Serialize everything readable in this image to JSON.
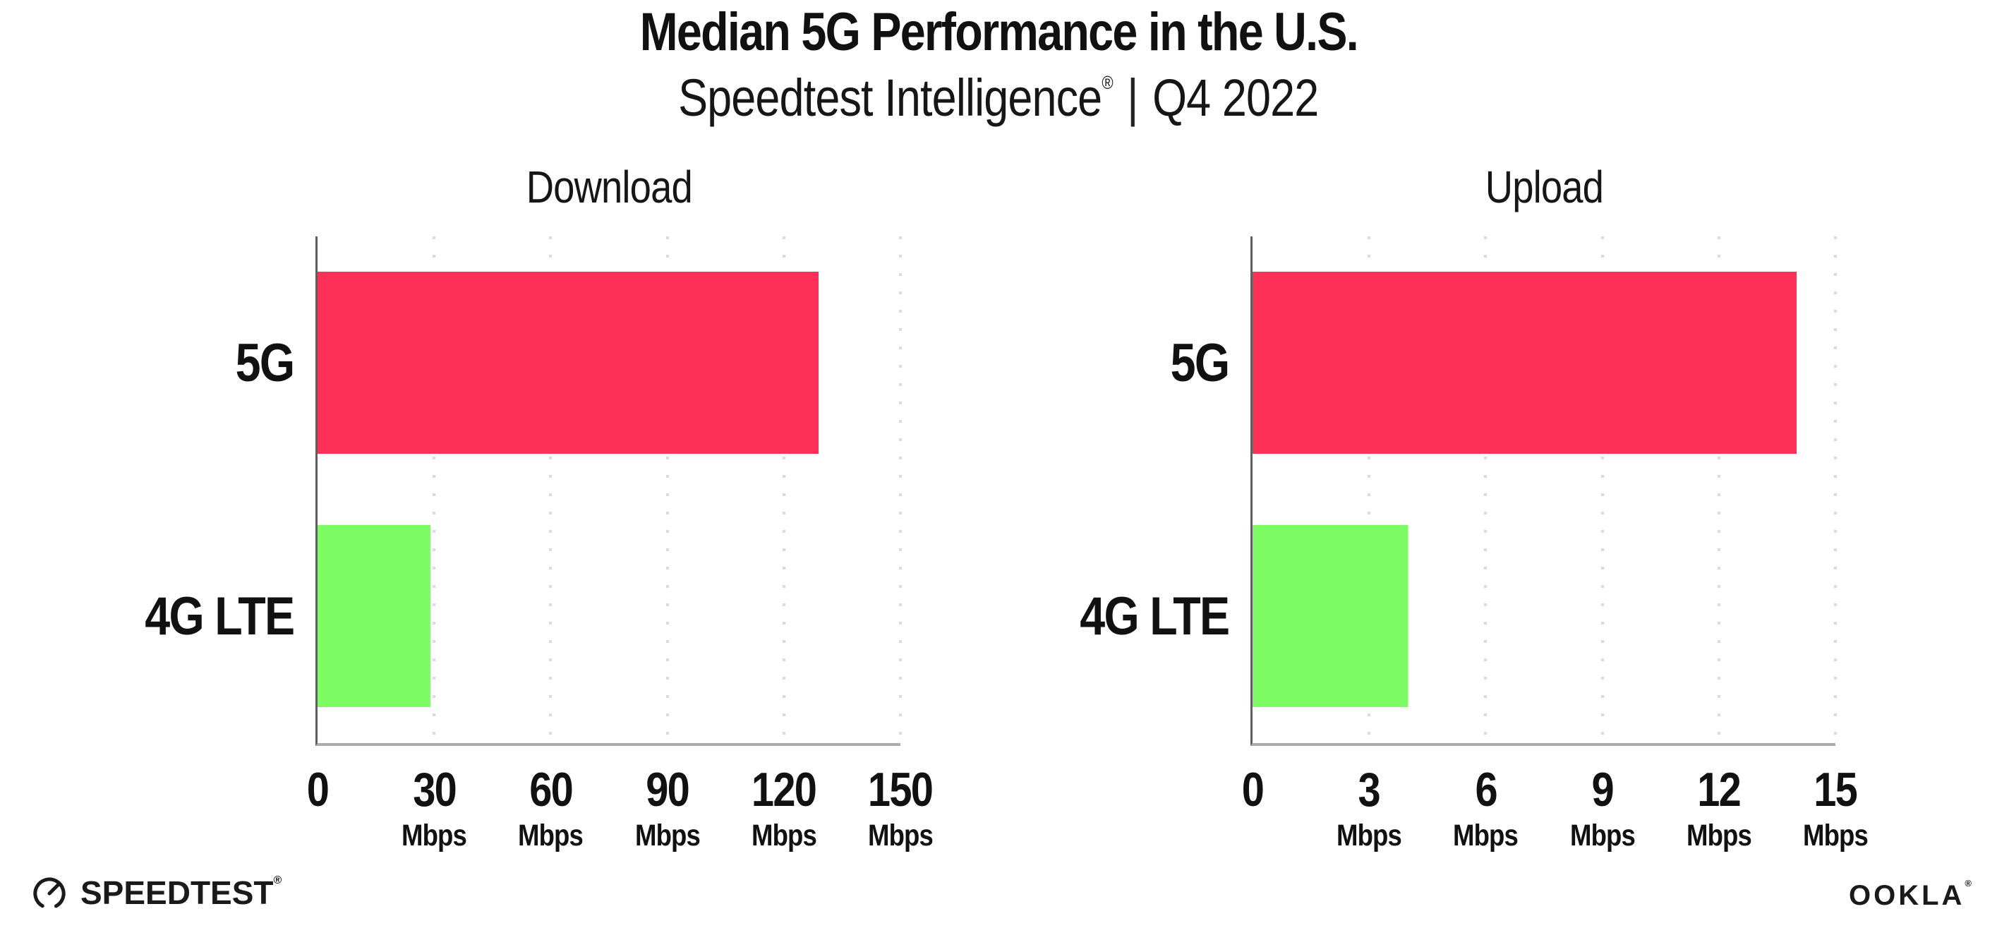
{
  "header": {
    "title": "Median 5G Performance in the U.S.",
    "subtitle_product": "Speedtest Intelligence",
    "subtitle_reg": "®",
    "subtitle_separator": "|",
    "subtitle_period": "Q4 2022"
  },
  "chart_data": [
    {
      "type": "bar",
      "orientation": "horizontal",
      "title": "Download",
      "categories": [
        "5G",
        "4G LTE"
      ],
      "values": [
        129,
        29
      ],
      "unit": "Mbps",
      "xlim": [
        0,
        150
      ],
      "xticks": [
        0,
        30,
        60,
        90,
        120,
        150
      ],
      "tick_unit_label": "Mbps",
      "bar_colors": [
        "#ff3057",
        "#7dfb63"
      ],
      "grid": "dotted-vertical-at-ticks",
      "legend": "none"
    },
    {
      "type": "bar",
      "orientation": "horizontal",
      "title": "Upload",
      "categories": [
        "5G",
        "4G LTE"
      ],
      "values": [
        14,
        4
      ],
      "unit": "Mbps",
      "xlim": [
        0,
        15
      ],
      "xticks": [
        0,
        3,
        6,
        9,
        12,
        15
      ],
      "tick_unit_label": "Mbps",
      "bar_colors": [
        "#ff3057",
        "#7dfb63"
      ],
      "grid": "dotted-vertical-at-ticks",
      "legend": "none"
    }
  ],
  "footer": {
    "speedtest_wordmark": "SPEEDTEST",
    "speedtest_reg": "®",
    "ookla_wordmark": "OOKLA",
    "ookla_reg": "®"
  },
  "colors": {
    "bar_5g": "#ff3057",
    "bar_4g_lte": "#7dfb63",
    "gridline": "#dadae6",
    "x_axis": "#ababab",
    "y_axis": "#5f5f5f",
    "text": "#111111",
    "background": "#ffffff"
  }
}
